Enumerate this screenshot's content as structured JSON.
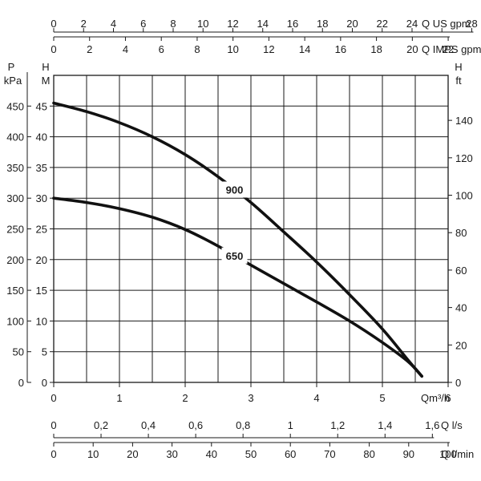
{
  "chart_data": {
    "type": "line",
    "x_unit": "Qm³/h",
    "xlim": [
      0,
      6
    ],
    "x_ticks": [
      0,
      1,
      2,
      3,
      4,
      5,
      6
    ],
    "x_tick_labels": [
      "0",
      "1",
      "2",
      "3",
      "4",
      "5",
      "6"
    ],
    "ylim_m": [
      0,
      50
    ],
    "grid": true,
    "series": [
      {
        "name": "900",
        "color": "#111111",
        "x": [
          0,
          0.5,
          1.0,
          1.5,
          2.0,
          2.5,
          3.0,
          3.5,
          4.0,
          4.5,
          5.0,
          5.4,
          5.6
        ],
        "y": [
          45.5,
          44.1,
          42.3,
          40.0,
          37.1,
          33.5,
          29.3,
          24.5,
          19.6,
          14.3,
          8.7,
          3.5,
          1.0
        ]
      },
      {
        "name": "650",
        "color": "#111111",
        "x": [
          0,
          0.5,
          1.0,
          1.5,
          2.0,
          2.5,
          3.0,
          3.5,
          4.0,
          4.5,
          5.0,
          5.4,
          5.6
        ],
        "y": [
          30.0,
          29.3,
          28.3,
          26.9,
          24.9,
          22.2,
          19.1,
          16.1,
          13.1,
          10.0,
          6.5,
          3.3,
          1.0
        ]
      }
    ],
    "axes": {
      "top_us": {
        "unit": "Q US gpm",
        "ticks": [
          0,
          2,
          4,
          6,
          8,
          10,
          12,
          14,
          16,
          18,
          20,
          22,
          24,
          26,
          28
        ],
        "labeled": [
          0,
          2,
          4,
          6,
          8,
          10,
          12,
          14,
          16,
          18,
          20,
          22,
          24,
          28
        ]
      },
      "top_imps": {
        "unit": "Q IMPS gpm",
        "ticks": [
          0,
          2,
          4,
          6,
          8,
          10,
          12,
          14,
          16,
          18,
          20,
          22
        ],
        "labeled": [
          0,
          2,
          4,
          6,
          8,
          10,
          12,
          14,
          16,
          18,
          20,
          22
        ]
      },
      "left_kpa": {
        "letter": "P",
        "unit": "kPa",
        "ticks": [
          0,
          50,
          100,
          150,
          200,
          250,
          300,
          350,
          400,
          450
        ]
      },
      "left_m": {
        "letter": "H",
        "unit": "M",
        "ticks": [
          0,
          5,
          10,
          15,
          20,
          25,
          30,
          35,
          40,
          45
        ]
      },
      "right_ft": {
        "letter": "H",
        "unit": "ft",
        "ticks": [
          0,
          20,
          40,
          60,
          80,
          100,
          120,
          140
        ]
      },
      "bottom_ls": {
        "unit": "Q l/s",
        "ticks": [
          0,
          0.2,
          0.4,
          0.6,
          0.8,
          1.0,
          1.2,
          1.4,
          1.6
        ],
        "labels": [
          "0",
          "0,2",
          "0,4",
          "0,6",
          "0,8",
          "1",
          "1,2",
          "1,4",
          "1,6"
        ]
      },
      "bottom_lmin": {
        "unit": "Q l/min",
        "ticks": [
          0,
          10,
          20,
          30,
          40,
          50,
          60,
          70,
          80,
          90,
          100
        ],
        "labels": [
          "0",
          "10",
          "20",
          "30",
          "40",
          "50",
          "60",
          "70",
          "80",
          "90",
          "100"
        ]
      }
    }
  }
}
